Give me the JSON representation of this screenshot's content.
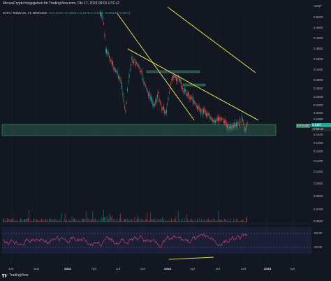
{
  "header": {
    "text": "MenusCrypto freigegeben für TradingView.com, Okt 17, 2023 08:01 UTC+2"
  },
  "symbol_line": {
    "symbol": "IOTA / TetherUS, 1T, BINANCE",
    "ohlc": "O 0.1478  H 0.1503  L 0.1475  C 0.1490  +0.0013 (+0.88%)"
  },
  "price_axis": {
    "currency": "USDT",
    "labels": [
      "0.5200",
      "0.4600",
      "0.4200",
      "0.3800",
      "0.3400",
      "0.3100",
      "0.2800",
      "0.2600",
      "0.2400",
      "0.2200",
      "0.2000",
      "0.1850",
      "0.1700",
      "0.1600",
      "0.1500",
      "0.1400",
      "0.1350",
      "0.1300",
      "0.1200",
      "0.1100",
      "0.1000",
      "0.0900",
      "0.0800",
      "0.0700",
      "0.0600"
    ]
  },
  "price_tags": {
    "pair": "IOTAUSDT",
    "last": "0.1490",
    "countdown": "17:58:32"
  },
  "rsi_axis": {
    "labels": [
      "60.00",
      "40.00"
    ]
  },
  "x_axis": {
    "labels": [
      {
        "text": "Jun",
        "year": false
      },
      {
        "text": "Sep",
        "year": false
      },
      {
        "text": "2022",
        "year": true
      },
      {
        "text": "Apr",
        "year": false
      },
      {
        "text": "Jul",
        "year": false
      },
      {
        "text": "Oct",
        "year": false
      },
      {
        "text": "2023",
        "year": true
      },
      {
        "text": "Apr",
        "year": false
      },
      {
        "text": "Jul",
        "year": false
      },
      {
        "text": "Oct",
        "year": false
      },
      {
        "text": "2024",
        "year": true
      },
      {
        "text": "Apr",
        "year": false
      }
    ]
  },
  "footer": {
    "brand": "TradingView"
  },
  "colors": {
    "background": "#131722",
    "bull": "#26a69a",
    "bear": "#ef5350",
    "trendline": "#e5e14a",
    "zone": "#2a5e49",
    "rsi": "#e0457b"
  }
}
